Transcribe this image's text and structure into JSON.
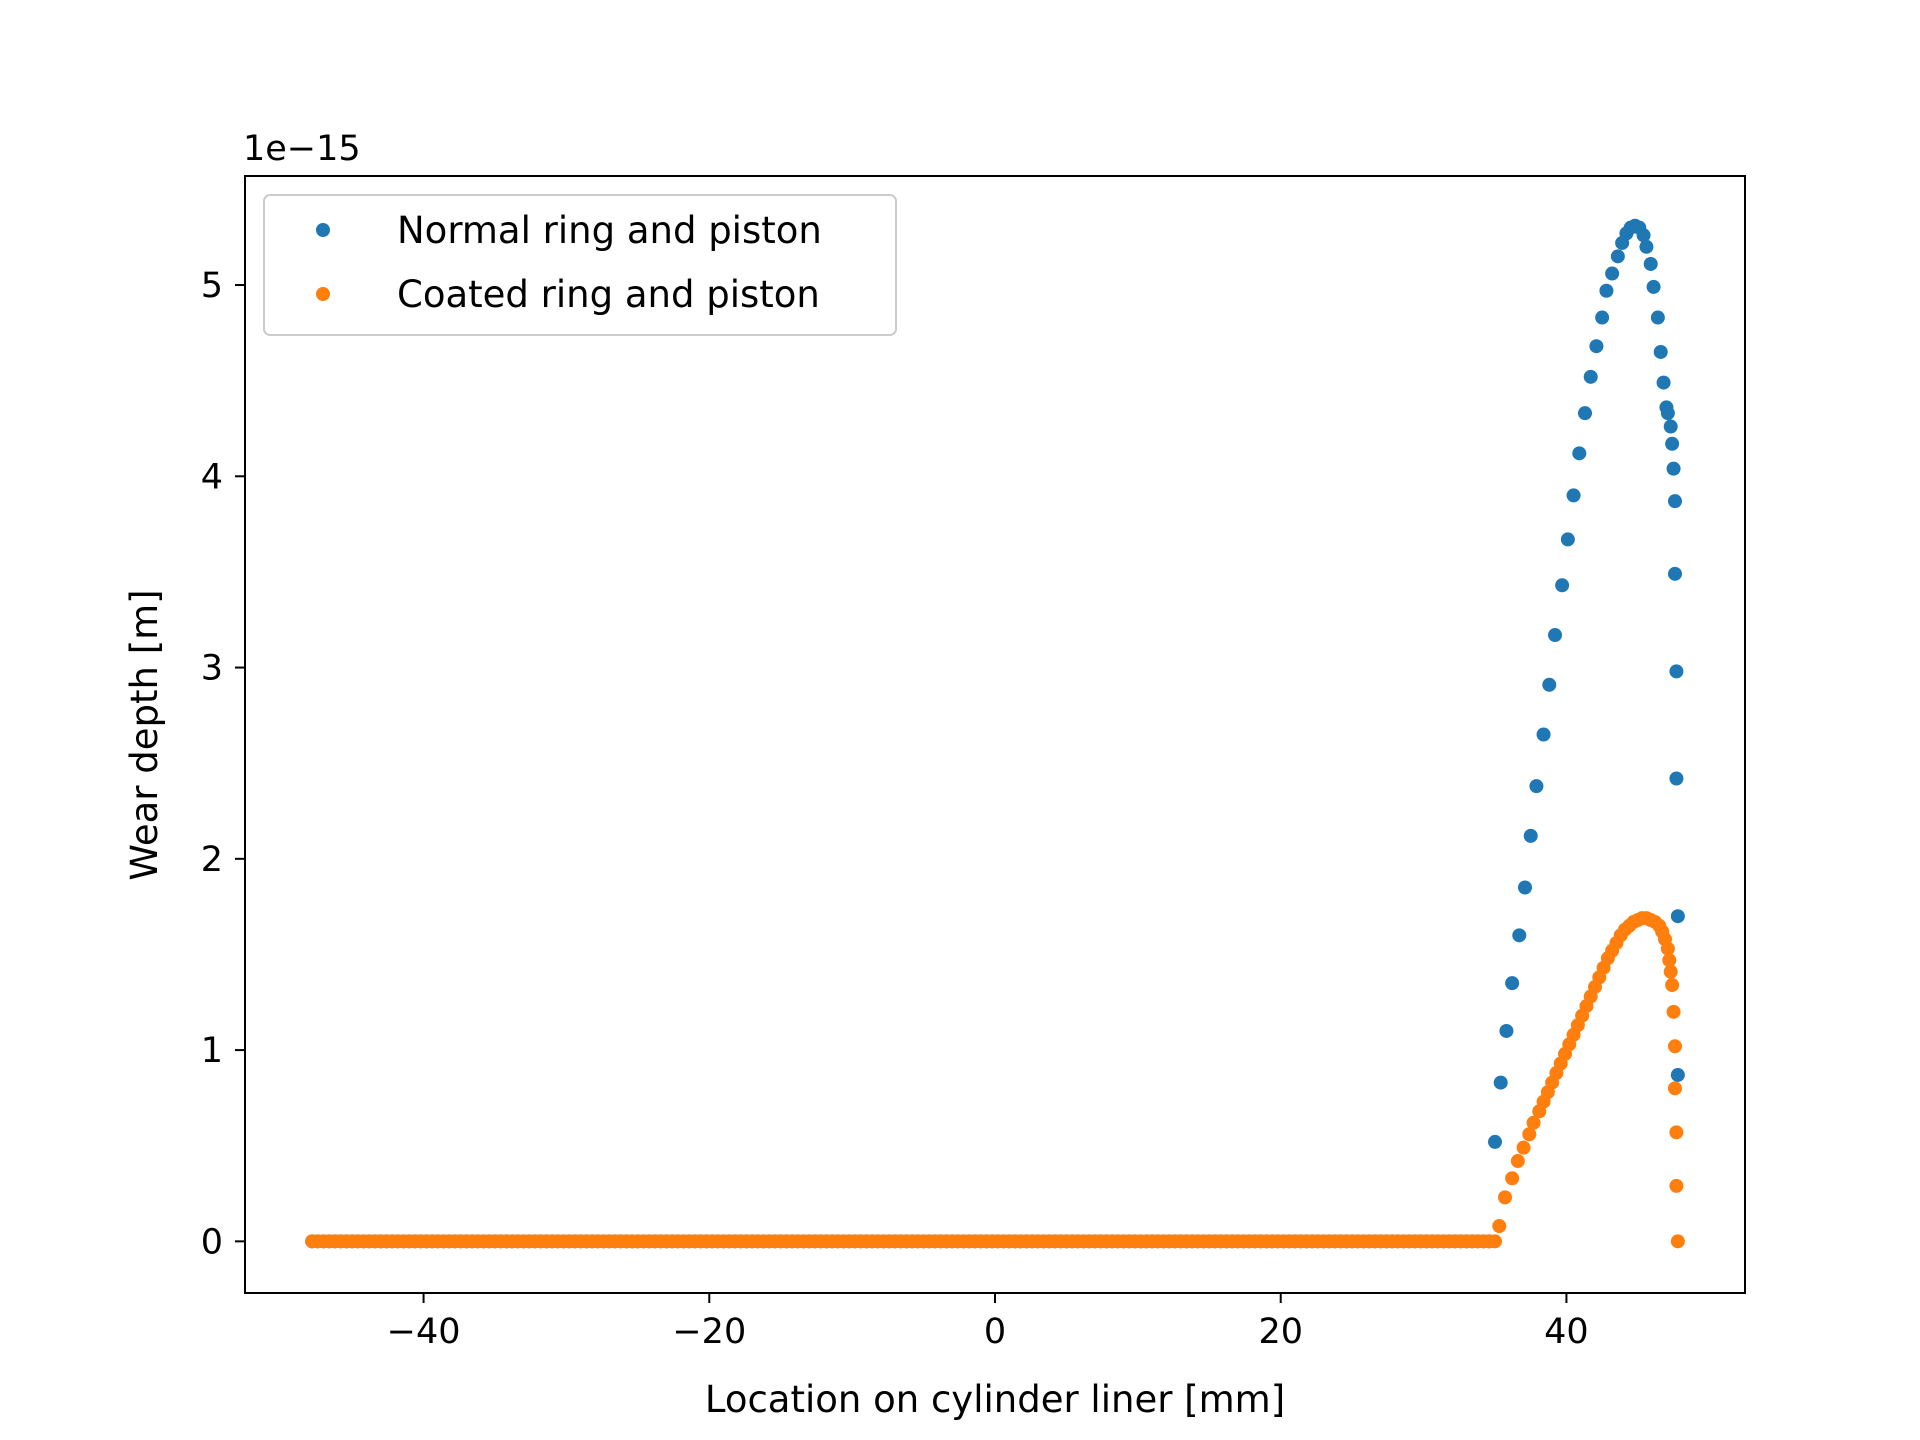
{
  "chart_data": {
    "type": "scatter",
    "title": "",
    "xlabel": "Location on cylinder liner [mm]",
    "ylabel": "Wear depth [m]",
    "y_offset_label": "1e−15",
    "xlim": [
      -52.5,
      52.5
    ],
    "ylim": [
      -0.27,
      5.57
    ],
    "x_ticks": [
      -40,
      -20,
      0,
      20,
      40
    ],
    "x_tick_labels": [
      "−40",
      "−20",
      "0",
      "20",
      "40"
    ],
    "y_ticks": [
      0,
      1,
      2,
      3,
      4,
      5
    ],
    "y_tick_labels": [
      "0",
      "1",
      "2",
      "3",
      "4",
      "5"
    ],
    "grid": false,
    "legend_position": "upper left",
    "series": [
      {
        "name": "Normal ring and piston",
        "color": "#1f77b4",
        "flat_segment": {
          "x_start": -47.8,
          "x_end": 34.7,
          "step": 0.4,
          "y": 0
        },
        "points": [
          [
            35.0,
            0.52
          ],
          [
            35.4,
            0.83
          ],
          [
            35.8,
            1.1
          ],
          [
            36.2,
            1.35
          ],
          [
            36.7,
            1.6
          ],
          [
            37.1,
            1.85
          ],
          [
            37.5,
            2.12
          ],
          [
            37.9,
            2.38
          ],
          [
            38.4,
            2.65
          ],
          [
            38.8,
            2.91
          ],
          [
            39.2,
            3.17
          ],
          [
            39.7,
            3.43
          ],
          [
            40.1,
            3.67
          ],
          [
            40.5,
            3.9
          ],
          [
            40.9,
            4.12
          ],
          [
            41.3,
            4.33
          ],
          [
            41.7,
            4.52
          ],
          [
            42.1,
            4.68
          ],
          [
            42.5,
            4.83
          ],
          [
            42.8,
            4.97
          ],
          [
            43.2,
            5.06
          ],
          [
            43.6,
            5.15
          ],
          [
            43.9,
            5.22
          ],
          [
            44.2,
            5.27
          ],
          [
            44.5,
            5.3
          ],
          [
            44.8,
            5.31
          ],
          [
            45.1,
            5.3
          ],
          [
            45.4,
            5.26
          ],
          [
            45.6,
            5.2
          ],
          [
            45.9,
            5.11
          ],
          [
            46.1,
            4.99
          ],
          [
            46.4,
            4.83
          ],
          [
            46.6,
            4.65
          ],
          [
            46.8,
            4.49
          ],
          [
            47.0,
            4.36
          ],
          [
            47.1,
            4.33
          ],
          [
            47.3,
            4.26
          ],
          [
            47.4,
            4.17
          ],
          [
            47.5,
            4.04
          ],
          [
            47.6,
            3.87
          ],
          [
            47.6,
            3.49
          ],
          [
            47.7,
            2.98
          ],
          [
            47.7,
            2.42
          ],
          [
            47.8,
            1.7
          ],
          [
            47.8,
            0.87
          ]
        ]
      },
      {
        "name": "Coated ring and piston",
        "color": "#ff7f0e",
        "flat_segment": {
          "x_start": -47.8,
          "x_end": 34.9,
          "step": 0.4,
          "y": 0
        },
        "points": [
          [
            35.3,
            0.08
          ],
          [
            35.7,
            0.23
          ],
          [
            36.2,
            0.33
          ],
          [
            36.6,
            0.42
          ],
          [
            37.0,
            0.49
          ],
          [
            37.4,
            0.56
          ],
          [
            37.7,
            0.62
          ],
          [
            38.1,
            0.68
          ],
          [
            38.4,
            0.73
          ],
          [
            38.7,
            0.78
          ],
          [
            39.0,
            0.83
          ],
          [
            39.3,
            0.88
          ],
          [
            39.6,
            0.93
          ],
          [
            39.9,
            0.98
          ],
          [
            40.2,
            1.03
          ],
          [
            40.5,
            1.08
          ],
          [
            40.8,
            1.13
          ],
          [
            41.1,
            1.18
          ],
          [
            41.4,
            1.23
          ],
          [
            41.7,
            1.28
          ],
          [
            42.0,
            1.33
          ],
          [
            42.3,
            1.38
          ],
          [
            42.6,
            1.43
          ],
          [
            42.9,
            1.48
          ],
          [
            43.2,
            1.52
          ],
          [
            43.5,
            1.56
          ],
          [
            43.8,
            1.6
          ],
          [
            44.1,
            1.63
          ],
          [
            44.4,
            1.65
          ],
          [
            44.7,
            1.67
          ],
          [
            45.0,
            1.68
          ],
          [
            45.3,
            1.69
          ],
          [
            45.6,
            1.69
          ],
          [
            45.9,
            1.68
          ],
          [
            46.2,
            1.67
          ],
          [
            46.5,
            1.65
          ],
          [
            46.7,
            1.62
          ],
          [
            46.9,
            1.58
          ],
          [
            47.1,
            1.53
          ],
          [
            47.2,
            1.47
          ],
          [
            47.3,
            1.41
          ],
          [
            47.4,
            1.34
          ],
          [
            47.5,
            1.2
          ],
          [
            47.6,
            1.02
          ],
          [
            47.6,
            0.8
          ],
          [
            47.7,
            0.57
          ],
          [
            47.7,
            0.29
          ],
          [
            47.8,
            0.0
          ]
        ]
      }
    ]
  }
}
